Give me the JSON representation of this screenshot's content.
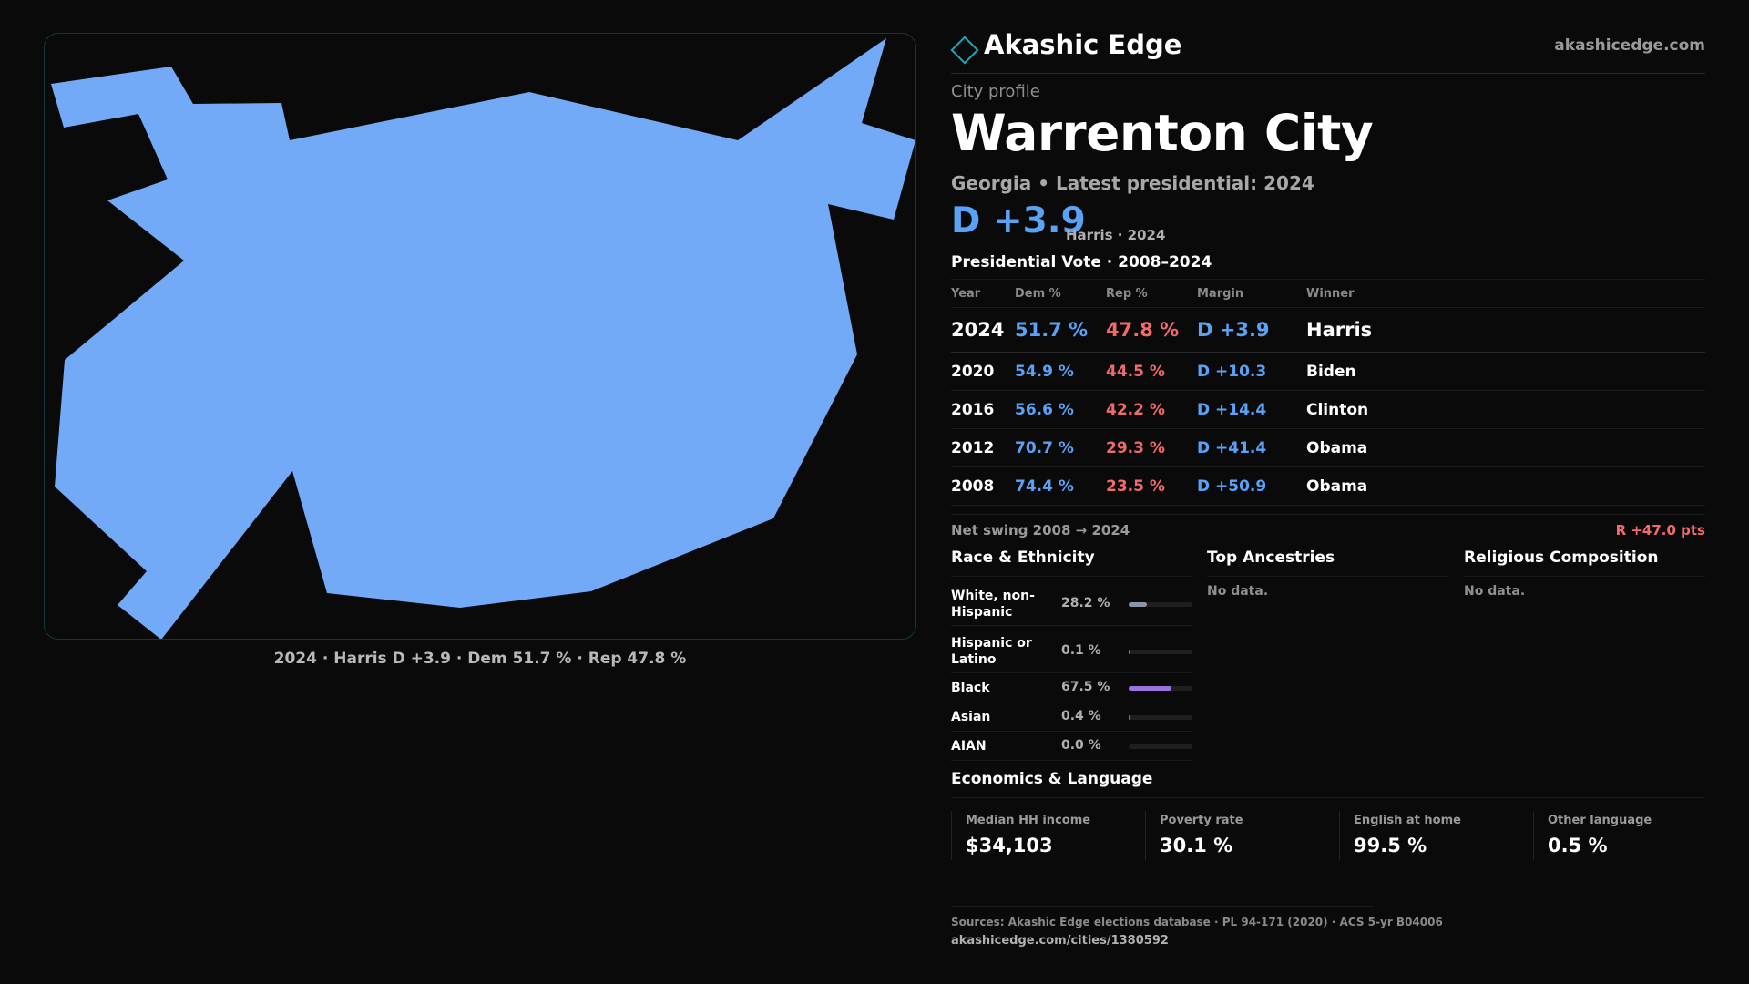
{
  "map": {
    "fill_color": "#72aaf8",
    "caption": "2024 · Harris D +3.9 · Dem 51.7 % · Rep 47.8 %"
  },
  "brand": {
    "icon": "diamond-icon",
    "name": "Akashic Edge",
    "url": "akashicedge.com"
  },
  "profile": {
    "kicker": "City profile",
    "title": "Warrenton City",
    "subtitle": "Georgia • Latest presidential: 2024",
    "headline_margin": "D +3.9",
    "headline_note": "Harris · 2024"
  },
  "vote": {
    "title": "Presidential Vote · 2008–2024",
    "columns": [
      "Year",
      "Dem %",
      "Rep %",
      "Margin",
      "Winner"
    ],
    "rows": [
      {
        "year": "2024",
        "dem": "51.7 %",
        "rep": "47.8 %",
        "margin": "D +3.9",
        "winner": "Harris"
      },
      {
        "year": "2020",
        "dem": "54.9 %",
        "rep": "44.5 %",
        "margin": "D +10.3",
        "winner": "Biden"
      },
      {
        "year": "2016",
        "dem": "56.6 %",
        "rep": "42.2 %",
        "margin": "D +14.4",
        "winner": "Clinton"
      },
      {
        "year": "2012",
        "dem": "70.7 %",
        "rep": "29.3 %",
        "margin": "D +41.4",
        "winner": "Obama"
      },
      {
        "year": "2008",
        "dem": "74.4 %",
        "rep": "23.5 %",
        "margin": "D +50.9",
        "winner": "Obama"
      }
    ],
    "swing_label": "Net swing 2008 → 2024",
    "swing_value": "R +47.0 pts"
  },
  "race": {
    "title": "Race & Ethnicity",
    "rows": [
      {
        "label": "White, non-Hispanic",
        "pct": "28.2 %",
        "share": 0.282,
        "color": "#8b96a3"
      },
      {
        "label": "Hispanic or Latino",
        "pct": "0.1 %",
        "share": 0.001,
        "color": "#3aa66b"
      },
      {
        "label": "Black",
        "pct": "67.5 %",
        "share": 0.675,
        "color": "#9b73e0"
      },
      {
        "label": "Asian",
        "pct": "0.4 %",
        "share": 0.004,
        "color": "#1aa9b8"
      },
      {
        "label": "AIAN",
        "pct": "0.0 %",
        "share": 0.0,
        "color": "#c9a24a"
      }
    ]
  },
  "ancestries": {
    "title": "Top Ancestries",
    "empty": "No data."
  },
  "religion": {
    "title": "Religious Composition",
    "empty": "No data."
  },
  "economics": {
    "title": "Economics & Language",
    "stats": [
      {
        "label": "Median HH income",
        "value": "$34,103"
      },
      {
        "label": "Poverty rate",
        "value": "30.1 %"
      },
      {
        "label": "English at home",
        "value": "99.5 %"
      },
      {
        "label": "Other language",
        "value": "0.5 %"
      }
    ]
  },
  "footer": {
    "sources": "Sources: Akashic Edge elections database · PL 94-171 (2020) · ACS 5-yr B04006",
    "url": "akashicedge.com/cities/1380592"
  }
}
